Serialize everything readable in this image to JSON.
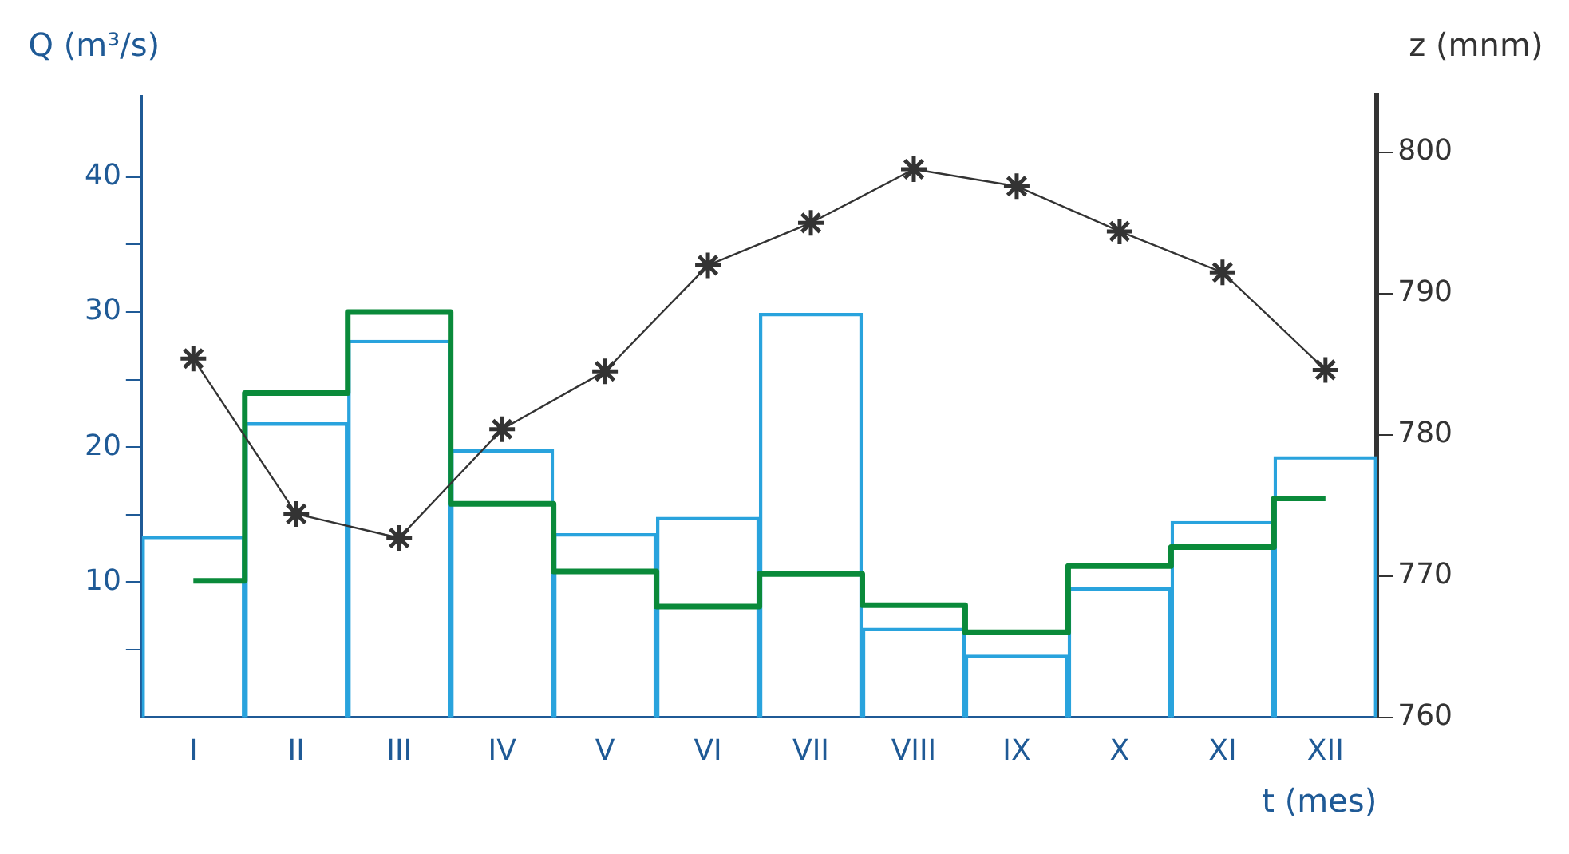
{
  "chart_data": {
    "type": "bar",
    "xlabel": "t (mes)",
    "ylabel": "Q (m³/s)",
    "y2label": "z (mnm)",
    "categories": [
      "I",
      "II",
      "III",
      "IV",
      "V",
      "VI",
      "VII",
      "VIII",
      "IX",
      "X",
      "XI",
      "XII"
    ],
    "series": [
      {
        "color": "#29a3dd",
        "values": [
          13.4,
          21.8,
          27.9,
          19.8,
          13.6,
          14.8,
          29.9,
          6.6,
          4.6,
          9.6,
          14.5,
          19.3
        ]
      },
      {
        "type": "step",
        "marker": "none",
        "color": "#0a8a3a",
        "values": [
          10.1,
          24.0,
          30.0,
          15.8,
          10.8,
          8.2,
          10.6,
          8.3,
          6.3,
          11.2,
          12.6,
          16.2
        ]
      },
      {
        "type": "line",
        "marker": "cross",
        "axis": "y2",
        "color": "#333333",
        "values": [
          785.4,
          774.4,
          772.7,
          780.4,
          784.5,
          792.0,
          795.0,
          798.8,
          797.6,
          794.4,
          791.5,
          784.6
        ]
      }
    ],
    "ylim": [
      0,
      46
    ],
    "yticks": [
      {
        "value": 5,
        "label": null
      },
      10,
      {
        "value": 15,
        "label": null
      },
      20,
      {
        "value": 25,
        "label": null
      },
      30,
      {
        "value": 35,
        "label": null
      },
      40
    ],
    "y2lim": [
      760,
      804
    ],
    "y2ticks": [
      760,
      770,
      780,
      790,
      800
    ],
    "grid": false,
    "legend": false
  }
}
